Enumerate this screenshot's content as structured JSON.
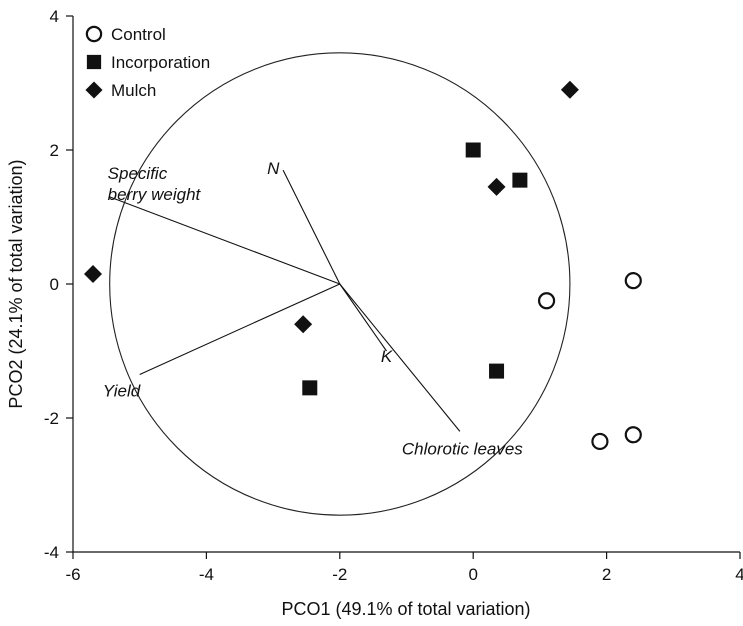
{
  "chart_data": {
    "type": "scatter",
    "title": "",
    "xlabel": "PCO1 (49.1% of total variation)",
    "ylabel": "PCO2 (24.1% of total variation)",
    "xlim": [
      -6,
      4
    ],
    "ylim": [
      -4,
      4
    ],
    "xticks": [
      "-6",
      "-4",
      "-2",
      "0",
      "2",
      "4"
    ],
    "yticks": [
      "-4",
      "-2",
      "0",
      "2",
      "4"
    ],
    "grid": false,
    "legend_position": "top-left",
    "series": [
      {
        "name": "Control",
        "marker": "open-circle",
        "points": [
          {
            "x": 1.1,
            "y": -0.25
          },
          {
            "x": 2.4,
            "y": 0.05
          },
          {
            "x": 1.9,
            "y": -2.35
          },
          {
            "x": 2.4,
            "y": -2.25
          }
        ]
      },
      {
        "name": "Incorporation",
        "marker": "filled-square",
        "points": [
          {
            "x": 0.0,
            "y": 2.0
          },
          {
            "x": 0.7,
            "y": 1.55
          },
          {
            "x": 0.35,
            "y": -1.3
          },
          {
            "x": -2.45,
            "y": -1.55
          }
        ]
      },
      {
        "name": "Mulch",
        "marker": "filled-diamond",
        "points": [
          {
            "x": 1.45,
            "y": 2.9
          },
          {
            "x": 0.35,
            "y": 1.45
          },
          {
            "x": -5.7,
            "y": 0.15
          },
          {
            "x": -2.55,
            "y": -0.6
          }
        ]
      }
    ],
    "correlation_circle": {
      "center": {
        "x": -2.0,
        "y": 0.0
      },
      "radius": 3.45
    },
    "vectors": [
      {
        "label": "N",
        "end": {
          "x": -2.85,
          "y": 1.7
        }
      },
      {
        "label": "Specific berry weight",
        "label_lines": [
          "Specific",
          "berry weight"
        ],
        "end": {
          "x": -5.45,
          "y": 1.3
        }
      },
      {
        "label": "Yield",
        "end": {
          "x": -5.0,
          "y": -1.35
        }
      },
      {
        "label": "K",
        "end": {
          "x": -1.3,
          "y": -1.0
        }
      },
      {
        "label": "Chlorotic leaves",
        "end": {
          "x": -0.2,
          "y": -2.2
        }
      }
    ]
  }
}
